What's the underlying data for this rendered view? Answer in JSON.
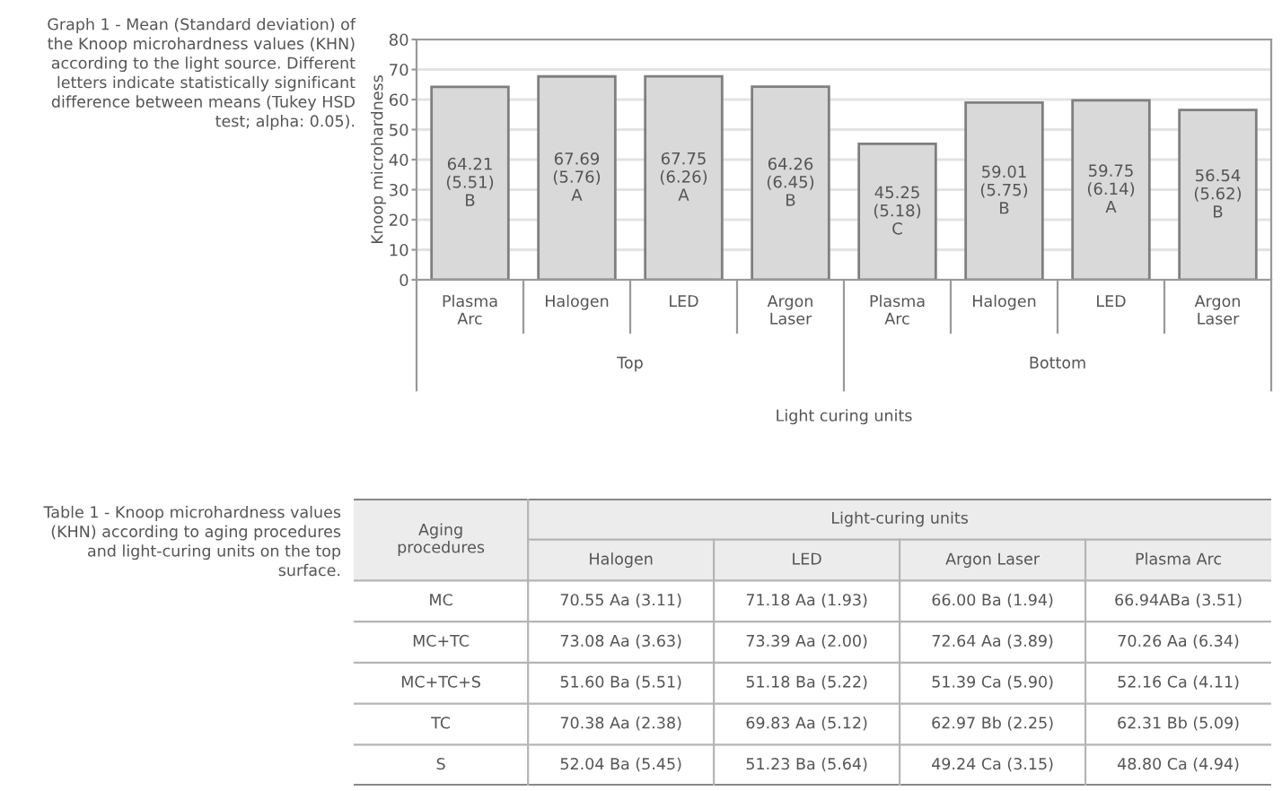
{
  "chart_data": [
    {
      "type": "bar",
      "title": "Graph 1 - Mean (Standard deviation) of the Knoop microhardness values (KHN) according to the light source. Different letters indicate statistically significant difference between means (Tukey HSD test; alpha: 0.05).",
      "ylabel": "Knoop microhardness",
      "xlabel": "Light curing units",
      "categories": [
        "Plasma\nArc",
        "Halogen",
        "LED",
        "Argon\nLaser",
        "Plasma\nArc",
        "Halogen",
        "LED",
        "Argon\nLaser"
      ],
      "values": [
        64.21,
        67.69,
        67.75,
        64.26,
        45.25,
        59.01,
        59.75,
        56.54
      ],
      "value_labels": [
        "64.21\n(5.51)\nB",
        "67.69\n(5.76)\nA",
        "67.75\n(6.26)\nA",
        "64.26\n(6.45)\nB",
        "45.25\n(5.18)\nC",
        "59.01\n(5.75)\nB",
        "59.75\n(6.14)\nA",
        "56.54\n(5.62)\nB"
      ],
      "annotations": [
        "Top",
        "Bottom"
      ],
      "color": "#d9d9d9",
      "ylim": [
        0,
        80
      ],
      "yticks": [
        0,
        10,
        20,
        30,
        40,
        50,
        60,
        70,
        80
      ],
      "grid": "y"
    },
    {
      "type": "other",
      "title": "Table 1 - Knoop microhardness values (KHN) according to aging procedures and light-curing units on the top surface.",
      "ylabel": "Aging procedures",
      "xlabel": "Light-curing units",
      "categories": [
        "Halogen",
        "LED",
        "Argon Laser",
        "Plasma Arc"
      ],
      "y_categories": [
        "MC",
        "MC+TC",
        "MC+TC+S",
        "TC",
        "S"
      ],
      "cell_labels": [
        [
          "70.55 Aa (3.11)",
          "71.18 Aa (1.93)",
          "66.00 Ba (1.94)",
          "66.94ABa (3.51)"
        ],
        [
          "73.08 Aa (3.63)",
          "73.39 Aa (2.00)",
          "72.64 Aa (3.89)",
          "70.26 Aa (6.34)"
        ],
        [
          "51.60 Ba (5.51)",
          "51.18 Ba (5.22)",
          "51.39 Ca (5.90)",
          "52.16 Ca (4.11)"
        ],
        [
          "70.38 Aa (2.38)",
          "69.83 Aa (5.12)",
          "62.97 Bb (2.25)",
          "62.31 Bb (5.09)"
        ],
        [
          "52.04 Ba (5.45)",
          "51.23 Ba (5.64)",
          "49.24 Ca (3.15)",
          "48.80 Ca (4.94)"
        ]
      ]
    }
  ]
}
